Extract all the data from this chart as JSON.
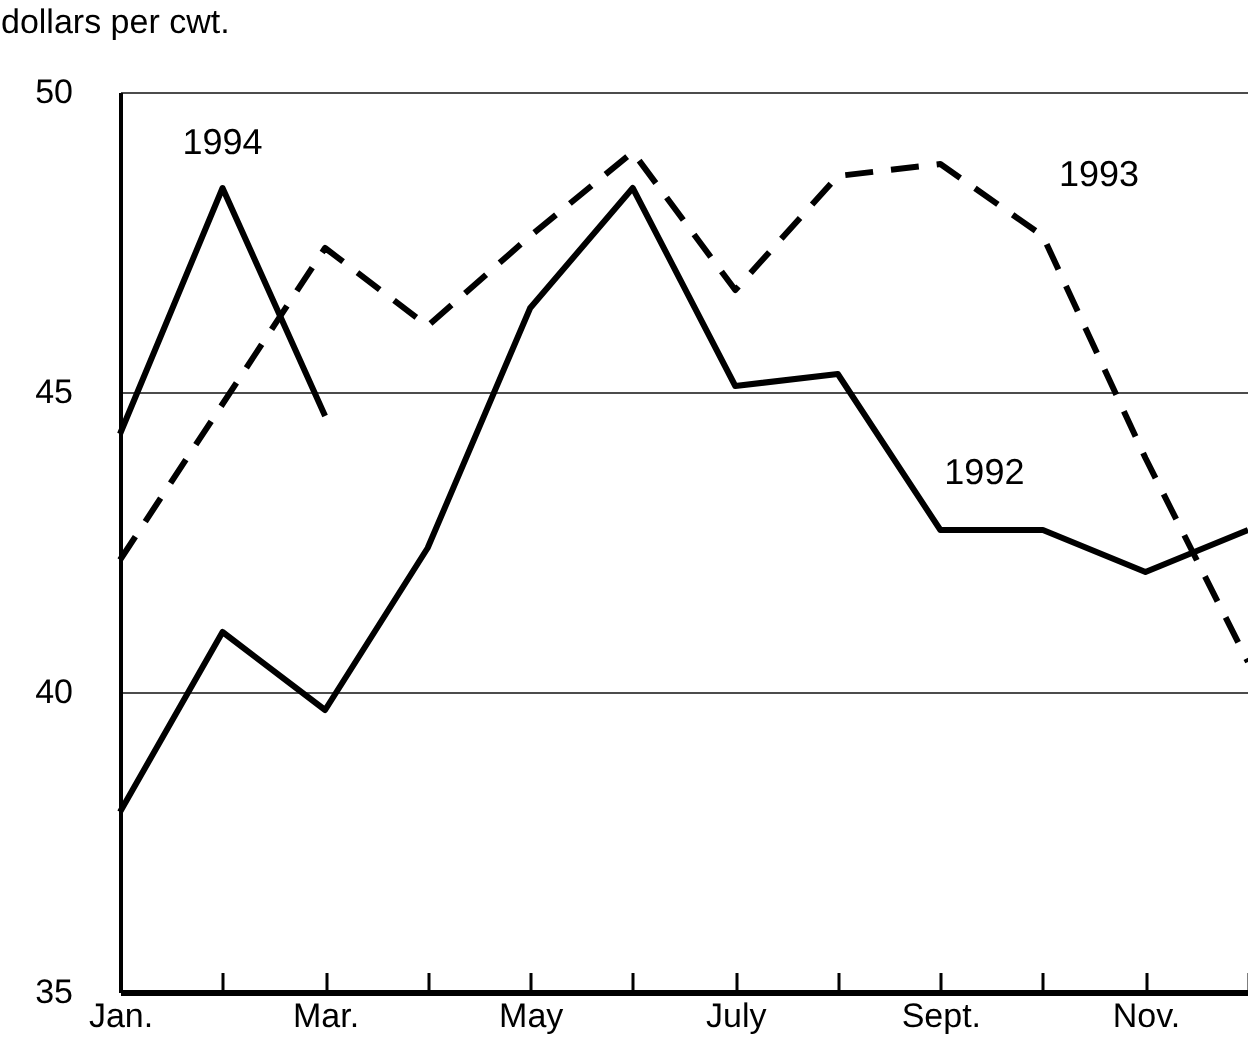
{
  "chart_data": {
    "type": "line",
    "ylabel": "dollars per cwt.",
    "categories": [
      "Jan.",
      null,
      "Mar.",
      null,
      "May",
      null,
      "July",
      null,
      "Sept.",
      null,
      "Nov.",
      null
    ],
    "ylim": [
      35,
      50
    ],
    "yticks": [
      35,
      40,
      45,
      50
    ],
    "grid": "y",
    "legend": false,
    "series": [
      {
        "name": "1992",
        "color": "#000000",
        "line_style": "solid",
        "values": [
          38.0,
          41.0,
          39.7,
          42.4,
          46.4,
          48.4,
          45.1,
          45.3,
          42.7,
          42.7,
          42.0,
          42.7
        ]
      },
      {
        "name": "1993",
        "color": "#000000",
        "line_style": "dashed",
        "values": [
          42.2,
          44.8,
          47.4,
          46.1,
          47.6,
          49.0,
          46.7,
          48.6,
          48.8,
          47.6,
          43.9,
          40.5
        ]
      },
      {
        "name": "1994",
        "color": "#000000",
        "line_style": "solid",
        "values": [
          44.3,
          48.4,
          44.6,
          null,
          null,
          null,
          null,
          null,
          null,
          null,
          null,
          null
        ]
      }
    ]
  }
}
